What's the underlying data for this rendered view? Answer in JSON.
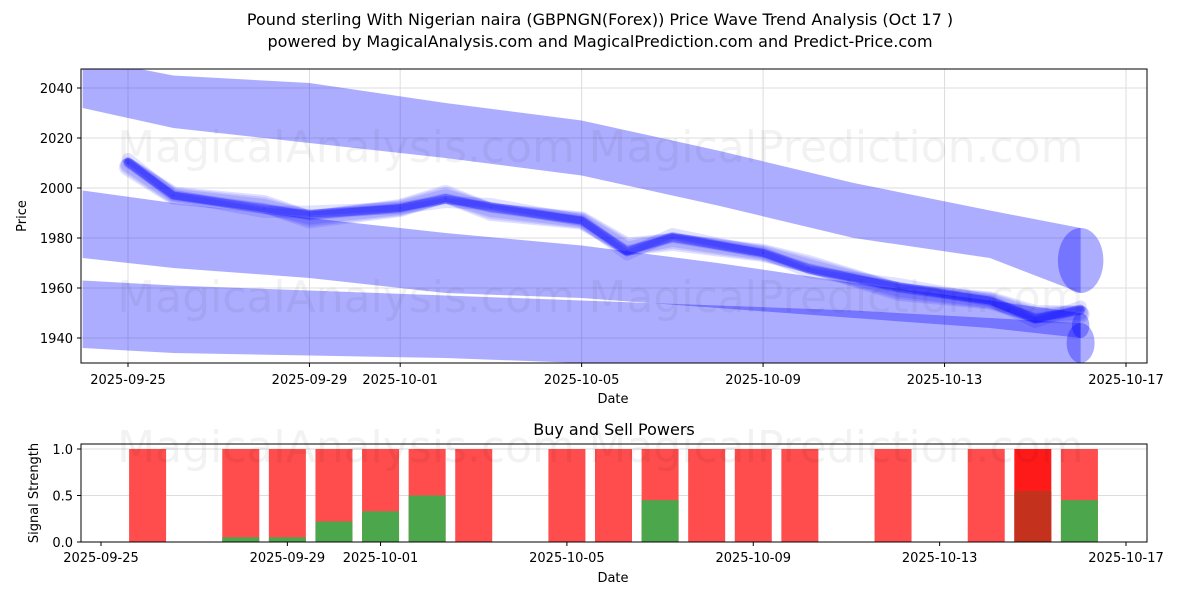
{
  "title": {
    "line1": "Pound sterling With Nigerian naira (GBPNGN(Forex)) Price Wave Trend Analysis (Oct 17 )",
    "line2": "powered by MagicalAnalysis.com and MagicalPrediction.com and Predict-Price.com"
  },
  "watermarks": [
    "MagicalAnalysis.com",
    "MagicalPrediction.com"
  ],
  "colors": {
    "band": "#0000ff",
    "sell": "#ff4c4c",
    "buy": "#4ca64c",
    "strong_sell": "#ff1a1a",
    "strong_buy_overlap": "#c4321e",
    "grid": "#dddddd"
  },
  "chart_data": [
    {
      "type": "area",
      "title": "",
      "xlabel": "Date",
      "ylabel": "Price",
      "xlim": [
        "2025-09-23.96",
        "2025-10-17.46"
      ],
      "ylim": [
        1930,
        2047.6
      ],
      "yticks": [
        1940,
        1960,
        1980,
        2000,
        2020,
        2040
      ],
      "xticks": [
        "2025-09-25",
        "2025-09-29",
        "2025-10-01",
        "2025-10-05",
        "2025-10-09",
        "2025-10-13",
        "2025-10-17"
      ],
      "grid": true,
      "series": [
        {
          "name": "upper-band",
          "x": [
            "2025-09-24",
            "2025-09-26",
            "2025-09-29",
            "2025-10-02",
            "2025-10-05",
            "2025-10-08",
            "2025-10-11",
            "2025-10-14",
            "2025-10-16"
          ],
          "upper": [
            2052,
            2045,
            2042,
            2034,
            2027,
            2015,
            2002,
            1991,
            1984
          ],
          "lower": [
            2032,
            2024,
            2018,
            2012,
            2005,
            1993,
            1980,
            1972,
            1958
          ]
        },
        {
          "name": "middle-band",
          "x": [
            "2025-09-24",
            "2025-09-26",
            "2025-09-29",
            "2025-10-02",
            "2025-10-05",
            "2025-10-08",
            "2025-10-11",
            "2025-10-14",
            "2025-10-16"
          ],
          "upper": [
            1999,
            1994,
            1988,
            1982,
            1977,
            1970,
            1962,
            1955,
            1950
          ],
          "lower": [
            1972,
            1968,
            1964,
            1958,
            1956,
            1952,
            1948,
            1944,
            1940
          ]
        },
        {
          "name": "lower-band",
          "x": [
            "2025-09-24",
            "2025-09-26",
            "2025-09-29",
            "2025-10-02",
            "2025-10-05",
            "2025-10-08",
            "2025-10-11",
            "2025-10-14",
            "2025-10-16"
          ],
          "upper": [
            1963,
            1961,
            1959,
            1957,
            1955,
            1953,
            1951,
            1948,
            1946
          ],
          "lower": [
            1936,
            1934,
            1933,
            1932,
            1930,
            1930,
            1930,
            1930,
            1930
          ]
        },
        {
          "name": "price-wave",
          "x": [
            "2025-09-25",
            "2025-09-26",
            "2025-09-28",
            "2025-09-29",
            "2025-10-01",
            "2025-10-02",
            "2025-10-03",
            "2025-10-05",
            "2025-10-06",
            "2025-10-07",
            "2025-10-09",
            "2025-10-10",
            "2025-10-12",
            "2025-10-14",
            "2025-10-15",
            "2025-10-16"
          ],
          "values": [
            2010,
            1997,
            1992,
            1989,
            1992,
            1996,
            1992,
            1987,
            1975,
            1980,
            1974,
            1968,
            1960,
            1955,
            1948,
            1951
          ]
        }
      ]
    },
    {
      "type": "bar",
      "title": "Buy and Sell Powers",
      "xlabel": "Date",
      "ylabel": "Signal Strength",
      "ylim": [
        0,
        1.05
      ],
      "yticks": [
        "0.0",
        "0.5",
        "1.0"
      ],
      "xticks": [
        "2025-09-25",
        "2025-09-29",
        "2025-10-01",
        "2025-10-05",
        "2025-10-09",
        "2025-10-13",
        "2025-10-17"
      ],
      "grid": true,
      "categories": [
        "2025-09-26",
        "2025-09-28",
        "2025-09-29",
        "2025-09-30",
        "2025-10-01",
        "2025-10-02",
        "2025-10-03",
        "2025-10-05",
        "2025-10-06",
        "2025-10-07",
        "2025-10-08",
        "2025-10-09",
        "2025-10-10",
        "2025-10-12",
        "2025-10-14",
        "2025-10-15",
        "2025-10-16"
      ],
      "series": [
        {
          "name": "Buy",
          "values": [
            0,
            0.05,
            0.05,
            0.22,
            0.33,
            0.5,
            0,
            0,
            0,
            0.45,
            0,
            0,
            0,
            0,
            0,
            0.55,
            0.45
          ]
        },
        {
          "name": "Sell",
          "values": [
            1,
            1,
            1,
            1,
            1,
            1,
            1,
            1,
            1,
            1,
            1,
            1,
            1,
            1,
            1,
            1,
            1
          ]
        }
      ],
      "highlight": [
        "2025-10-15"
      ]
    }
  ]
}
